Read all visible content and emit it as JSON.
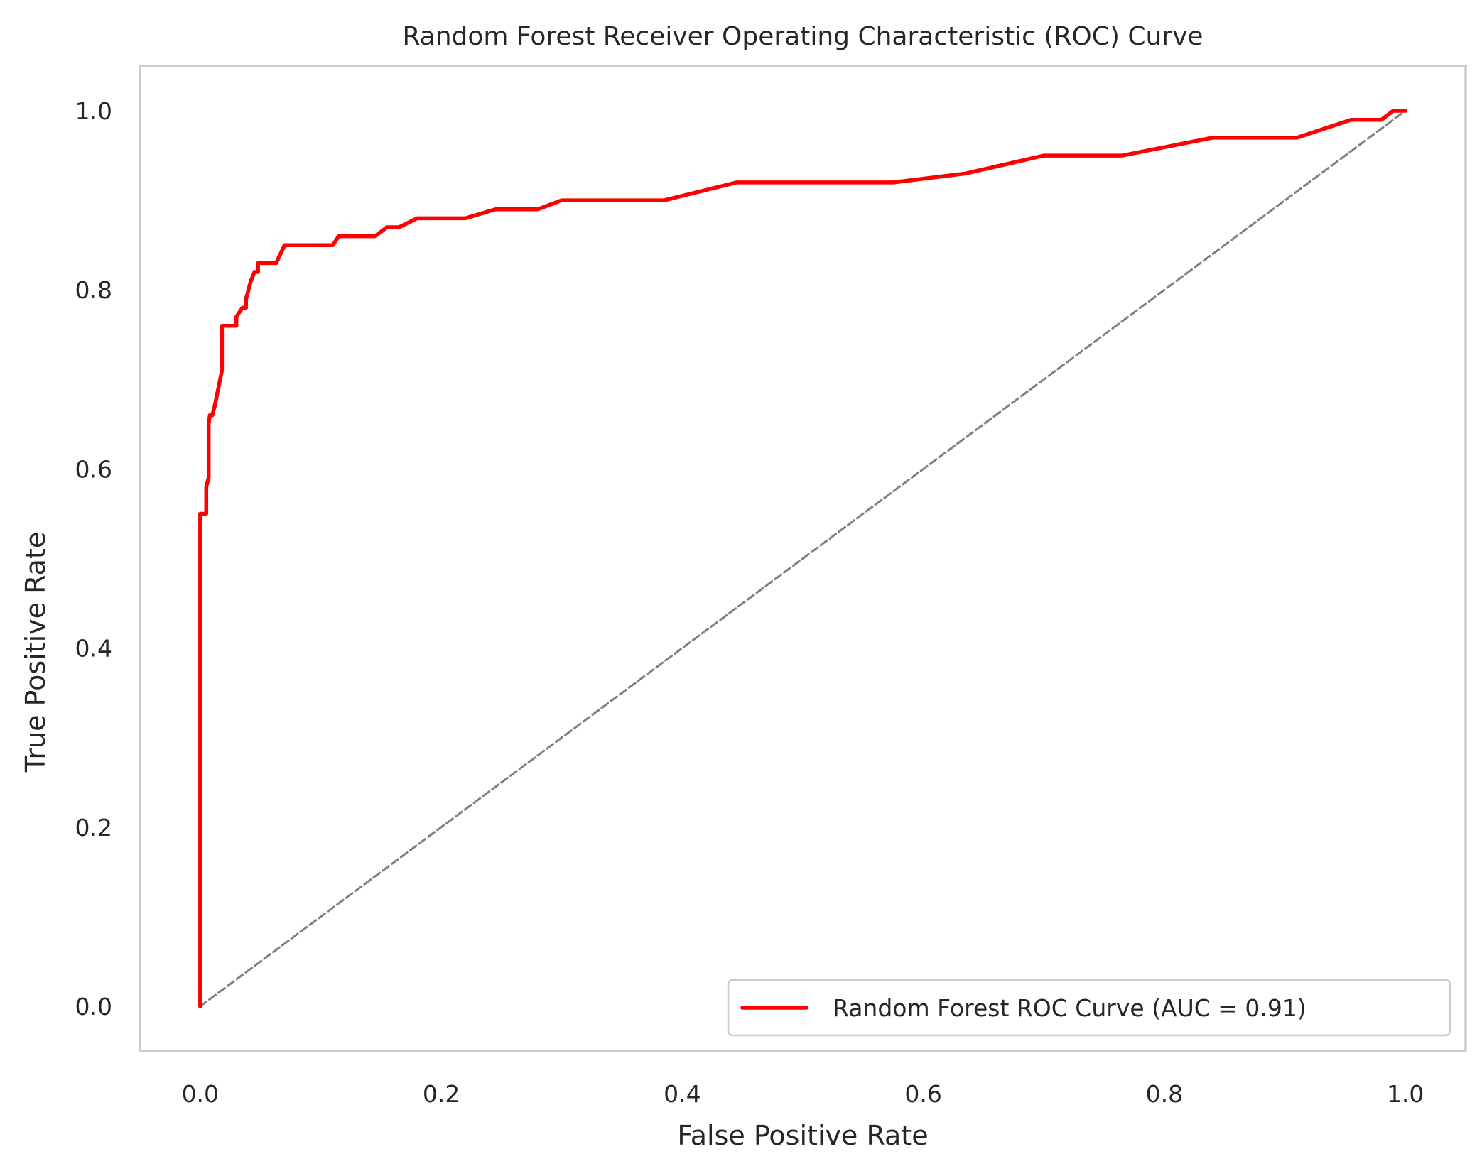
{
  "chart_data": {
    "type": "line",
    "title": "Random Forest Receiver Operating Characteristic (ROC) Curve",
    "xlabel": "False Positive Rate",
    "ylabel": "True Positive Rate",
    "xlim": [
      -0.05,
      1.05
    ],
    "ylim": [
      -0.05,
      1.05
    ],
    "x_ticks": [
      "0.0",
      "0.2",
      "0.4",
      "0.6",
      "0.8",
      "1.0"
    ],
    "y_ticks": [
      "0.0",
      "0.2",
      "0.4",
      "0.6",
      "0.8",
      "1.0"
    ],
    "grid": false,
    "legend_position": "lower-right",
    "legend": [
      "Random Forest ROC Curve (AUC = 0.91)"
    ],
    "series": [
      {
        "name": "Random Forest ROC Curve (AUC = 0.91)",
        "color": "#ff0000",
        "style": "solid",
        "x": [
          0.0,
          0.0,
          0.005,
          0.005,
          0.007,
          0.007,
          0.008,
          0.008,
          0.01,
          0.012,
          0.012,
          0.018,
          0.018,
          0.03,
          0.03,
          0.035,
          0.038,
          0.038,
          0.042,
          0.045,
          0.048,
          0.048,
          0.063,
          0.07,
          0.11,
          0.115,
          0.145,
          0.155,
          0.165,
          0.18,
          0.22,
          0.245,
          0.28,
          0.3,
          0.385,
          0.445,
          0.575,
          0.635,
          0.7,
          0.765,
          0.84,
          0.91,
          0.955,
          0.98,
          0.99,
          1.0
        ],
        "y": [
          0.0,
          0.55,
          0.55,
          0.58,
          0.59,
          0.65,
          0.66,
          0.66,
          0.66,
          0.67,
          0.67,
          0.71,
          0.76,
          0.76,
          0.77,
          0.78,
          0.78,
          0.79,
          0.81,
          0.82,
          0.82,
          0.83,
          0.83,
          0.85,
          0.85,
          0.86,
          0.86,
          0.87,
          0.87,
          0.88,
          0.88,
          0.89,
          0.89,
          0.9,
          0.9,
          0.92,
          0.92,
          0.93,
          0.95,
          0.95,
          0.97,
          0.97,
          0.99,
          0.99,
          1.0,
          1.0
        ]
      },
      {
        "name": "",
        "color": "#808080",
        "style": "dashed",
        "x": [
          0.0,
          1.0
        ],
        "y": [
          0.0,
          1.0
        ]
      }
    ],
    "colors": {
      "frame": "#cccccc",
      "text": "#262626",
      "legend_border": "#cccccc"
    }
  }
}
